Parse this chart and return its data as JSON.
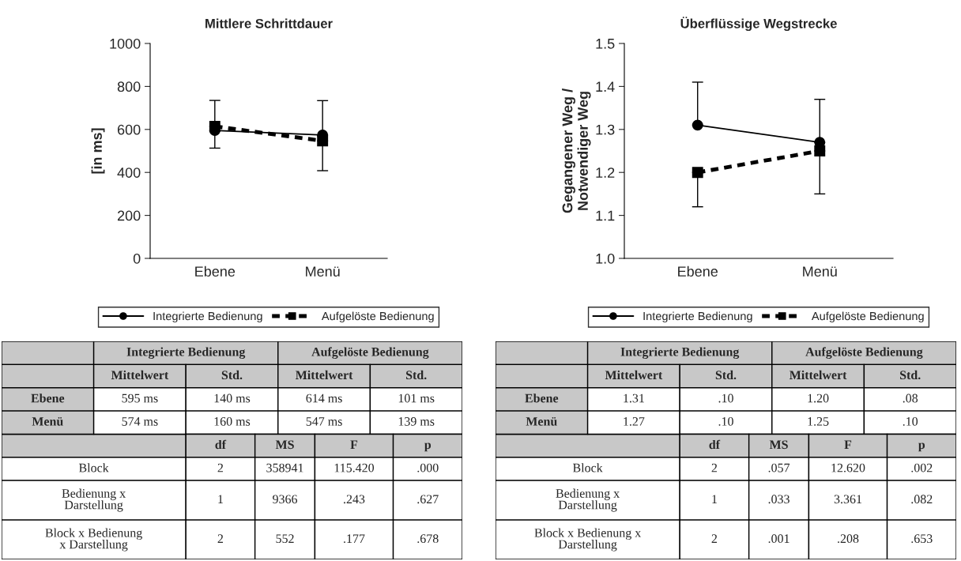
{
  "chart_data": [
    {
      "type": "line",
      "title": "Mittlere Schrittdauer",
      "ylabel": "[in ms]",
      "categories": [
        "Ebene",
        "Menü"
      ],
      "ylim": [
        0,
        1000
      ],
      "yticks": [
        0,
        200,
        400,
        600,
        800,
        1000
      ],
      "grid": false,
      "legend": "bottom",
      "series": [
        {
          "name": "Integrierte Bedienung",
          "color": "#000000",
          "values": [
            595,
            574
          ],
          "errors": [
            [
              595,
              735
            ],
            [
              574,
              734
            ]
          ],
          "marker": "circle",
          "line_style": "solid"
        },
        {
          "name": "Aufgelöste Bedienung",
          "color": "#000000",
          "values": [
            614,
            547
          ],
          "errors": [
            [
              513,
              614
            ],
            [
              408,
              547
            ]
          ],
          "marker": "square",
          "line_style": "dashed"
        }
      ],
      "annotations": [
        "Integrierte Bedienung",
        "Aufgelöste Bedienung",
        "Mittelwert",
        "Std.",
        "Mittelwert",
        "Std.",
        "Ebene",
        "595 ms",
        "140 ms",
        "614 ms",
        "101 ms",
        "Menü",
        "574 ms",
        "160 ms",
        "547 ms",
        "139 ms",
        "df",
        "MS",
        "F",
        "p",
        "Block",
        "2",
        "358941",
        "115.420",
        ".000",
        "Bedienung x\nDarstellung",
        "1",
        "9366",
        ".243",
        ".627",
        "Block x Bedienung\nx Darstellung",
        "2",
        "552",
        ".177",
        ".678"
      ]
    },
    {
      "type": "line",
      "title": "Überflüssige Wegstrecke",
      "ylabel": "Gegangener Weg /\nNotwendiger Weg",
      "categories": [
        "Ebene",
        "Menü"
      ],
      "ylim": [
        1.0,
        1.5
      ],
      "yticks": [
        {
          "value": 1.0,
          "label": "1.0"
        },
        1.1,
        1.2,
        1.3,
        1.4,
        1.5
      ],
      "grid": false,
      "legend": "bottom",
      "series": [
        {
          "name": "Integrierte Bedienung",
          "color": "#000000",
          "values": [
            1.31,
            1.27
          ],
          "errors": [
            [
              1.31,
              1.41
            ],
            [
              1.27,
              1.37
            ]
          ],
          "marker": "circle",
          "line_style": "solid"
        },
        {
          "name": "Aufgelöste Bedienung",
          "color": "#000000",
          "values": [
            1.2,
            1.25
          ],
          "errors": [
            [
              1.12,
              1.2
            ],
            [
              1.15,
              1.25
            ]
          ],
          "marker": "square",
          "line_style": "dashed"
        }
      ],
      "annotations": [
        "Integrierte Bedienung",
        "Aufgelöste Bedienung",
        "Mittelwert",
        "Std.",
        "Mittelwert",
        "Std.",
        "Ebene",
        "1.31",
        ".10",
        "1.20",
        ".08",
        "Menü",
        "1.27",
        ".10",
        "1.25",
        ".10",
        "df",
        "MS",
        "F",
        "p",
        "Block",
        "2",
        ".057",
        "12.620",
        ".002",
        "Bedienung x\nDarstellung",
        "1",
        ".033",
        "3.361",
        ".082",
        "Block x Bedienung x\nDarstellung",
        "2",
        ".001",
        ".208",
        ".653"
      ]
    }
  ]
}
